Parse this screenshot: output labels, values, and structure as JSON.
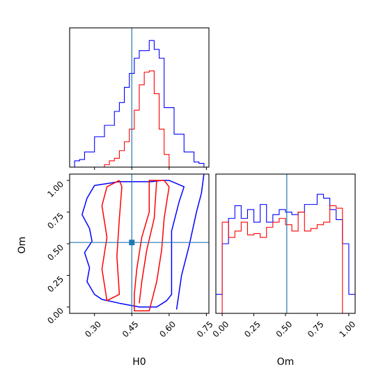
{
  "colors": {
    "series_a": "#0000ff",
    "series_b": "#ff0000",
    "truth": "#1f77b4",
    "axis": "#000000"
  },
  "chart_data": {
    "type": "corner",
    "parameters": [
      "H0",
      "Om"
    ],
    "truth": {
      "H0": 0.45,
      "Om": 0.51
    },
    "panels": [
      {
        "id": "hist-H0",
        "type": "histogram",
        "parameter": "H0",
        "x_range": [
          0.2,
          0.76
        ],
        "y_range": [
          0,
          1.1
        ],
        "x_ticks": [
          0.3,
          0.45,
          0.6,
          0.75
        ],
        "bin_edges": [
          0.2,
          0.22,
          0.24,
          0.26,
          0.28,
          0.3,
          0.32,
          0.34,
          0.36,
          0.38,
          0.4,
          0.42,
          0.44,
          0.46,
          0.48,
          0.5,
          0.52,
          0.54,
          0.56,
          0.58,
          0.6,
          0.62,
          0.64,
          0.66,
          0.68,
          0.7,
          0.72,
          0.74,
          0.76
        ],
        "series": [
          {
            "color": "#0000ff",
            "counts": [
              0,
              0.05,
              0.06,
              0.12,
              0.12,
              0.24,
              0.24,
              0.33,
              0.33,
              0.44,
              0.51,
              0.63,
              0.74,
              0.86,
              0.92,
              0.92,
              1.0,
              0.93,
              0.86,
              0.47,
              0.47,
              0.26,
              0.26,
              0.12,
              0.12,
              0.04,
              0.03,
              0.0
            ]
          },
          {
            "color": "#ff0000",
            "counts": [
              0,
              0,
              0,
              0,
              0,
              0.0,
              0.0,
              0.02,
              0.05,
              0.07,
              0.13,
              0.2,
              0.3,
              0.45,
              0.65,
              0.75,
              0.76,
              0.58,
              0.3,
              0.1,
              0.0,
              0,
              0,
              0,
              0,
              0,
              0,
              0
            ]
          }
        ]
      },
      {
        "id": "contour-H0-Om",
        "type": "contour",
        "x_param": "H0",
        "y_param": "Om",
        "x_range": [
          0.2,
          0.76
        ],
        "y_range": [
          -0.05,
          1.05
        ],
        "x_ticks": [
          0.3,
          0.45,
          0.6,
          0.75
        ],
        "y_ticks": [
          0.0,
          0.25,
          0.5,
          0.75,
          1.0
        ],
        "contours": [
          {
            "color": "#0000ff",
            "points": [
              [
                0.57,
                1.0
              ],
              [
                0.53,
                0.99
              ],
              [
                0.4,
                0.99
              ],
              [
                0.3,
                0.96
              ],
              [
                0.27,
                0.86
              ],
              [
                0.25,
                0.73
              ],
              [
                0.28,
                0.62
              ],
              [
                0.29,
                0.52
              ],
              [
                0.26,
                0.43
              ],
              [
                0.28,
                0.31
              ],
              [
                0.27,
                0.2
              ],
              [
                0.3,
                0.1
              ],
              [
                0.33,
                0.06
              ],
              [
                0.4,
                0.03
              ],
              [
                0.48,
                0.0
              ],
              [
                0.55,
                0.0
              ],
              [
                0.59,
                0.05
              ],
              [
                0.61,
                0.1
              ],
              [
                0.61,
                0.6
              ],
              [
                0.64,
                0.83
              ],
              [
                0.66,
                0.95
              ],
              [
                0.6,
                1.0
              ],
              [
                0.57,
                1.0
              ]
            ]
          },
          {
            "color": "#0000ff",
            "points": [
              [
                0.63,
                -0.02
              ],
              [
                0.65,
                0.25
              ],
              [
                0.68,
                0.48
              ],
              [
                0.71,
                0.75
              ],
              [
                0.73,
                0.9
              ],
              [
                0.74,
                1.05
              ]
            ]
          },
          {
            "color": "#ff0000",
            "points": [
              [
                0.58,
                1.0
              ],
              [
                0.52,
                1.0
              ],
              [
                0.52,
                0.75
              ],
              [
                0.49,
                0.55
              ],
              [
                0.47,
                0.3
              ],
              [
                0.46,
                0.1
              ],
              [
                0.46,
                -0.03
              ],
              [
                0.52,
                -0.03
              ],
              [
                0.55,
                0.2
              ],
              [
                0.57,
                0.45
              ],
              [
                0.58,
                0.7
              ],
              [
                0.6,
                0.95
              ],
              [
                0.58,
                1.0
              ]
            ]
          },
          {
            "color": "#ff0000",
            "points": [
              [
                0.55,
                1.0
              ],
              [
                0.54,
                0.7
              ],
              [
                0.51,
                0.45
              ],
              [
                0.49,
                0.2
              ],
              [
                0.48,
                0.03
              ]
            ]
          },
          {
            "color": "#ff0000",
            "points": [
              [
                0.4,
                1.0
              ],
              [
                0.35,
                0.95
              ],
              [
                0.33,
                0.8
              ],
              [
                0.35,
                0.55
              ],
              [
                0.33,
                0.3
              ],
              [
                0.35,
                0.05
              ],
              [
                0.4,
                0.1
              ],
              [
                0.39,
                0.4
              ],
              [
                0.4,
                0.7
              ],
              [
                0.41,
                0.95
              ],
              [
                0.4,
                1.0
              ]
            ]
          }
        ]
      },
      {
        "id": "hist-Om",
        "type": "histogram",
        "parameter": "Om",
        "x_range": [
          -0.05,
          1.05
        ],
        "y_range": [
          0,
          1.1
        ],
        "x_ticks": [
          0.0,
          0.25,
          0.5,
          0.75,
          1.0
        ],
        "bin_edges": [
          -0.05,
          0.0,
          0.05,
          0.1,
          0.15,
          0.2,
          0.25,
          0.3,
          0.35,
          0.4,
          0.45,
          0.5,
          0.55,
          0.6,
          0.65,
          0.7,
          0.75,
          0.8,
          0.85,
          0.9,
          0.95,
          1.0,
          1.05
        ],
        "series": [
          {
            "color": "#0000ff",
            "counts": [
              0.15,
              0.55,
              0.75,
              0.85,
              0.75,
              0.82,
              0.72,
              0.86,
              0.72,
              0.78,
              0.82,
              0.8,
              0.78,
              0.8,
              0.86,
              0.86,
              0.94,
              0.91,
              0.82,
              0.74,
              0.55,
              0.15
            ]
          },
          {
            "color": "#ff0000",
            "counts": [
              0,
              0.72,
              0.6,
              0.65,
              0.72,
              0.62,
              0.63,
              0.6,
              0.68,
              0.72,
              0.75,
              0.7,
              0.65,
              0.8,
              0.65,
              0.67,
              0.7,
              0.72,
              0.85,
              0.83,
              0.0,
              0
            ]
          }
        ]
      }
    ],
    "xlabel": "H0",
    "ylabel": "Om",
    "xlabel2": "Om"
  }
}
